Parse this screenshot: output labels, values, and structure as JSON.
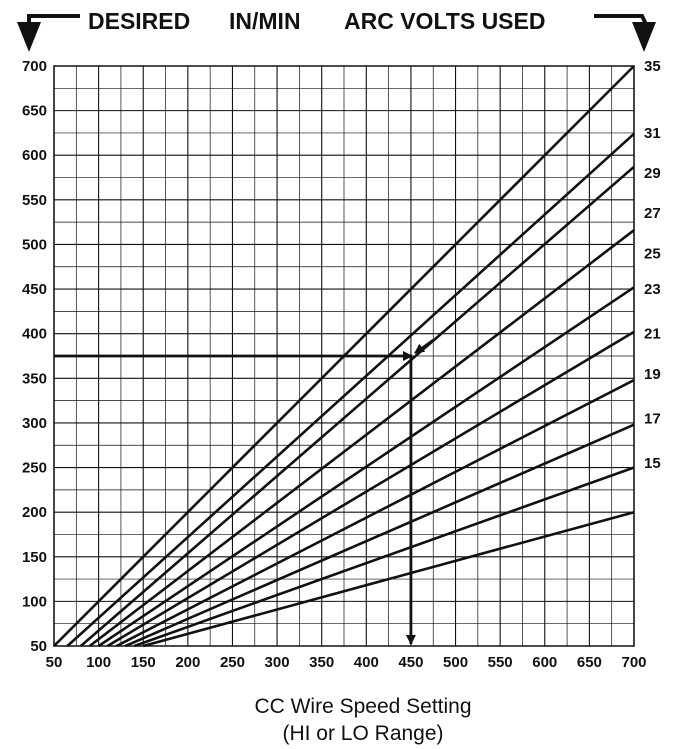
{
  "header": {
    "desired": "DESIRED",
    "in_min": "IN/MIN",
    "arc_volts_used": "ARC VOLTS USED"
  },
  "chart_data": {
    "type": "line",
    "title": "",
    "xlabel": "CC Wire Speed Setting",
    "xlabel_sub": "(HI or LO Range)",
    "ylabel": "DESIRED IN/MIN",
    "right_axis_label": "ARC VOLTS USED",
    "xlim": [
      50,
      700
    ],
    "ylim": [
      50,
      700
    ],
    "grid": true,
    "x_ticks": [
      50,
      100,
      150,
      200,
      250,
      300,
      350,
      400,
      450,
      500,
      550,
      600,
      650,
      700
    ],
    "y_ticks": [
      50,
      100,
      150,
      200,
      250,
      300,
      350,
      400,
      450,
      500,
      550,
      600,
      650,
      700
    ],
    "series": [
      {
        "name": "15",
        "points": [
          [
            150,
            50
          ],
          [
            700,
            200
          ]
        ]
      },
      {
        "name": "17",
        "points": [
          [
            140,
            50
          ],
          [
            700,
            250
          ]
        ]
      },
      {
        "name": "19",
        "points": [
          [
            130,
            50
          ],
          [
            700,
            298
          ]
        ]
      },
      {
        "name": "21",
        "points": [
          [
            120,
            50
          ],
          [
            700,
            348
          ]
        ]
      },
      {
        "name": "23",
        "points": [
          [
            110,
            50
          ],
          [
            700,
            402
          ]
        ]
      },
      {
        "name": "25",
        "points": [
          [
            100,
            50
          ],
          [
            700,
            452
          ]
        ]
      },
      {
        "name": "27",
        "points": [
          [
            90,
            50
          ],
          [
            700,
            516
          ]
        ]
      },
      {
        "name": "29",
        "points": [
          [
            80,
            50
          ],
          [
            700,
            587
          ]
        ]
      },
      {
        "name": "31",
        "points": [
          [
            65,
            50
          ],
          [
            700,
            624
          ]
        ]
      },
      {
        "name": "35",
        "points": [
          [
            50,
            50
          ],
          [
            700,
            700
          ]
        ]
      }
    ],
    "right_labels": [
      {
        "text": "35",
        "y": 700
      },
      {
        "text": "31",
        "y": 625
      },
      {
        "text": "29",
        "y": 580
      },
      {
        "text": "27",
        "y": 535
      },
      {
        "text": "25",
        "y": 490
      },
      {
        "text": "23",
        "y": 450
      },
      {
        "text": "21",
        "y": 400
      },
      {
        "text": "19",
        "y": 355
      },
      {
        "text": "17",
        "y": 305
      },
      {
        "text": "15",
        "y": 255
      }
    ],
    "example": {
      "desired_in_min": 375,
      "setting": 450
    }
  }
}
